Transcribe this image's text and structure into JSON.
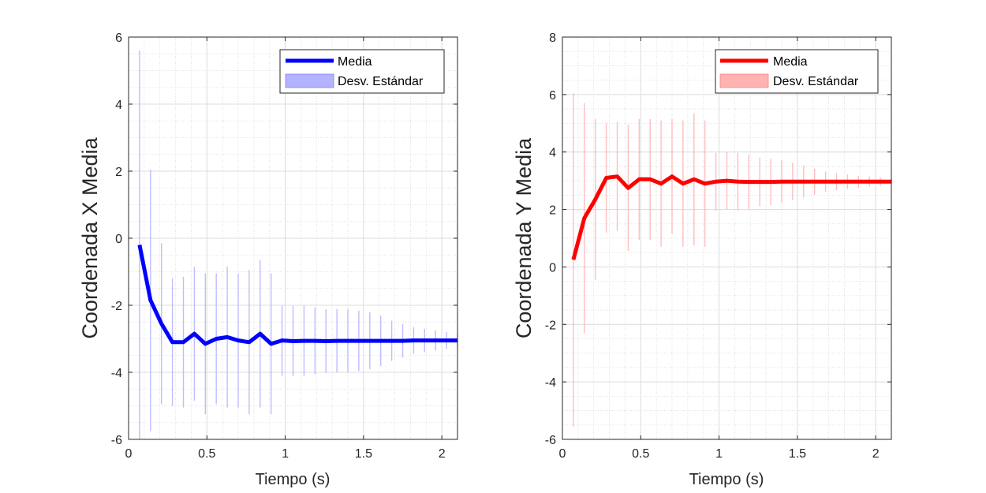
{
  "chart_data": [
    {
      "type": "line",
      "xlabel": "Tiempo (s)",
      "ylabel": "Coordenada X Media",
      "xlim": [
        0,
        2.1
      ],
      "ylim": [
        -6,
        6
      ],
      "xticks": [
        0,
        0.5,
        1,
        1.5,
        2
      ],
      "xtick_labels": [
        "0",
        "0.5",
        "1",
        "1.5",
        "2"
      ],
      "yticks": [
        -6,
        -4,
        -2,
        0,
        2,
        4,
        6
      ],
      "ytick_labels": [
        "-6",
        "-4",
        "-2",
        "0",
        "2",
        "4",
        "6"
      ],
      "grid": true,
      "minor_grid": true,
      "legend_position": "top-right",
      "color": "#0000ff",
      "band_color": "#b3b3ff",
      "legend": [
        "Media",
        "Desv. Estándar"
      ],
      "x": [
        0.07,
        0.14,
        0.21,
        0.28,
        0.35,
        0.42,
        0.49,
        0.56,
        0.63,
        0.7,
        0.77,
        0.84,
        0.91,
        0.98,
        1.05,
        1.12,
        1.19,
        1.26,
        1.33,
        1.4,
        1.47,
        1.54,
        1.61,
        1.68,
        1.75,
        1.82,
        1.89,
        1.96,
        2.03,
        2.1
      ],
      "series": [
        {
          "name": "Media",
          "values": [
            -0.2,
            -1.85,
            -2.55,
            -3.1,
            -3.1,
            -2.85,
            -3.15,
            -3.0,
            -2.95,
            -3.05,
            -3.1,
            -2.85,
            -3.15,
            -3.05,
            -3.07,
            -3.06,
            -3.06,
            -3.07,
            -3.06,
            -3.06,
            -3.06,
            -3.06,
            -3.06,
            -3.06,
            -3.06,
            -3.05,
            -3.05,
            -3.05,
            -3.05,
            -3.05
          ]
        },
        {
          "name": "Desv. Estándar",
          "values": [
            5.8,
            3.9,
            2.4,
            1.9,
            1.95,
            2.0,
            2.1,
            1.95,
            2.1,
            2.0,
            2.15,
            2.2,
            2.1,
            1.05,
            1.05,
            1.05,
            1.0,
            0.95,
            0.95,
            0.95,
            0.9,
            0.85,
            0.75,
            0.6,
            0.5,
            0.4,
            0.35,
            0.3,
            0.25,
            0.2
          ]
        }
      ]
    },
    {
      "type": "line",
      "xlabel": "Tiempo (s)",
      "ylabel": "Coordenada Y Media",
      "xlim": [
        0,
        2.1
      ],
      "ylim": [
        -6,
        8
      ],
      "xticks": [
        0,
        0.5,
        1,
        1.5,
        2
      ],
      "xtick_labels": [
        "0",
        "0.5",
        "1",
        "1.5",
        "2"
      ],
      "yticks": [
        -6,
        -4,
        -2,
        0,
        2,
        4,
        6,
        8
      ],
      "ytick_labels": [
        "-6",
        "-4",
        "-2",
        "0",
        "2",
        "4",
        "6",
        "8"
      ],
      "grid": true,
      "minor_grid": true,
      "legend_position": "top-right",
      "color": "#ff0000",
      "band_color": "#ffb3b3",
      "legend": [
        "Media",
        "Desv. Estándar"
      ],
      "x": [
        0.07,
        0.14,
        0.21,
        0.28,
        0.35,
        0.42,
        0.49,
        0.56,
        0.63,
        0.7,
        0.77,
        0.84,
        0.91,
        0.98,
        1.05,
        1.12,
        1.19,
        1.26,
        1.33,
        1.4,
        1.47,
        1.54,
        1.61,
        1.68,
        1.75,
        1.82,
        1.89,
        1.96,
        2.03,
        2.1
      ],
      "series": [
        {
          "name": "Media",
          "values": [
            0.25,
            1.7,
            2.35,
            3.1,
            3.15,
            2.75,
            3.05,
            3.05,
            2.9,
            3.15,
            2.9,
            3.05,
            2.9,
            2.97,
            3.0,
            2.97,
            2.96,
            2.96,
            2.96,
            2.97,
            2.97,
            2.97,
            2.97,
            2.97,
            2.97,
            2.97,
            2.97,
            2.97,
            2.97,
            2.97
          ]
        },
        {
          "name": "Desv. Estándar",
          "values": [
            5.8,
            4.0,
            2.8,
            1.9,
            1.9,
            2.2,
            2.1,
            2.1,
            2.2,
            2.0,
            2.2,
            2.3,
            2.2,
            1.0,
            1.0,
            1.0,
            0.95,
            0.85,
            0.8,
            0.75,
            0.65,
            0.55,
            0.45,
            0.35,
            0.3,
            0.25,
            0.2,
            0.18,
            0.15,
            0.12
          ]
        }
      ]
    }
  ]
}
